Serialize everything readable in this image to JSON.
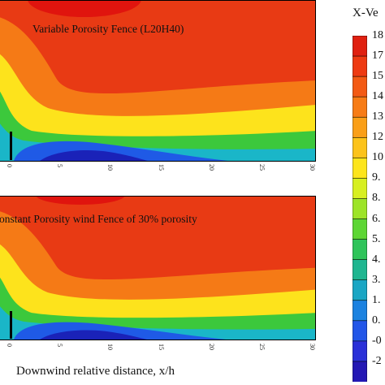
{
  "chart_data": {
    "type": "heatmap",
    "variable": "X-Ve",
    "xlabel": "Downwind relative distance, x/h",
    "x_ticks": [
      "0",
      "5",
      "10",
      "15",
      "20",
      "25",
      "30"
    ],
    "xlim": [
      0,
      30
    ],
    "panels": [
      {
        "title": "Variable Porosity Fence (L20H40)",
        "fence_x": 0
      },
      {
        "title": "onstant Porosity wind Fence of 30% porosity",
        "fence_x": 0
      }
    ],
    "legend": {
      "labels": [
        "18",
        "17",
        "15",
        "14",
        "13",
        "12",
        "10",
        "9.",
        "8.",
        "6.",
        "5.",
        "4.",
        "3.",
        "1.",
        "0.",
        "-0",
        "-2"
      ],
      "colors": [
        "#e02010",
        "#ee3a12",
        "#f35a14",
        "#f77c16",
        "#fa9f18",
        "#fcc31a",
        "#fde51c",
        "#d7ef20",
        "#9de428",
        "#5dd634",
        "#2fc45a",
        "#1fb690",
        "#1aa6c4",
        "#1c82e0",
        "#2256e8",
        "#2a30d8",
        "#2418b4"
      ]
    },
    "colors": {
      "outer": "#e83a14",
      "orange": "#f57a16",
      "yellow": "#fde31c",
      "green": "#3cc83c",
      "cyan": "#1ab6c8",
      "blue": "#1f5ae6",
      "navy": "#1a22b8",
      "peak": "#e0140e"
    }
  }
}
